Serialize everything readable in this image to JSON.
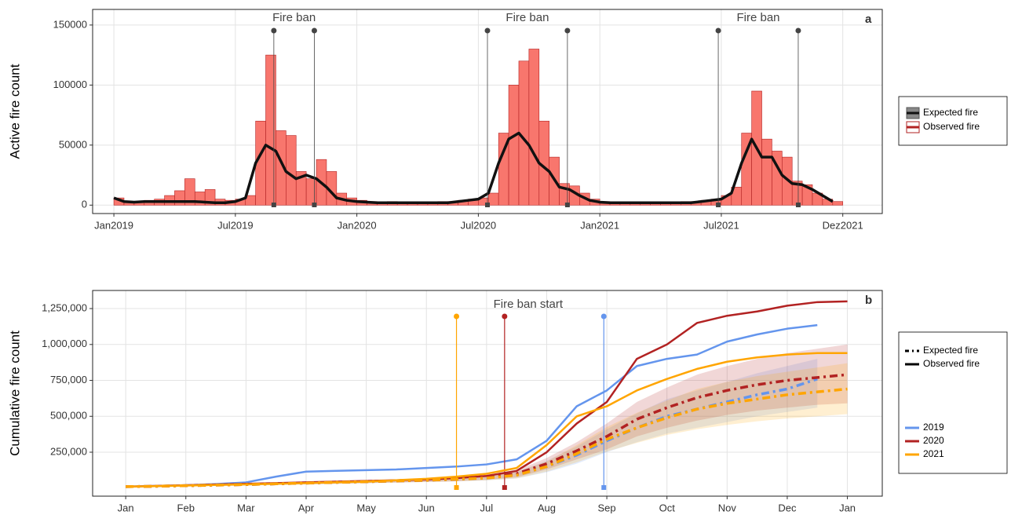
{
  "chart_data": [
    {
      "type": "bar",
      "panel": "a",
      "y_label": "Active fire count",
      "x": [
        0,
        0.5,
        1,
        1.5,
        2,
        2.5,
        3,
        3.5,
        4,
        4.5,
        5,
        5.5,
        6,
        6.5,
        7,
        7.5,
        8,
        8.5,
        9,
        9.5,
        10,
        10.5,
        11,
        11.5,
        12,
        12.5,
        13,
        13.5,
        14,
        14.5,
        15,
        15.5,
        16,
        16.5,
        17,
        17.5,
        18,
        18.5,
        19,
        19.5,
        20,
        20.5,
        21,
        21.5,
        22,
        22.5,
        23,
        23.5,
        24,
        24.5,
        25,
        25.5,
        26,
        26.5,
        27,
        27.5,
        28,
        28.5,
        29,
        29.5,
        30,
        30.5,
        31,
        31.5,
        32,
        32.5,
        33,
        33.5,
        34,
        34.5,
        35,
        35.5
      ],
      "series": [
        {
          "name": "Observed fire",
          "color": "#F8766D",
          "values": [
            6000,
            3000,
            3000,
            4000,
            5000,
            8000,
            12000,
            22000,
            11000,
            13000,
            5000,
            4000,
            5000,
            8000,
            70000,
            125000,
            62000,
            58000,
            28000,
            22000,
            38000,
            28000,
            10000,
            6000,
            4000,
            3000,
            2000,
            3000,
            2000,
            2000,
            2000,
            2000,
            3000,
            3000,
            4000,
            5000,
            6000,
            10000,
            60000,
            100000,
            120000,
            130000,
            70000,
            40000,
            18000,
            16000,
            10000,
            5000,
            3000,
            2000,
            2000,
            2000,
            2000,
            2000,
            2000,
            2000,
            3000,
            3000,
            4000,
            5000,
            8000,
            15000,
            60000,
            95000,
            55000,
            45000,
            40000,
            20000,
            17000,
            10000,
            5000,
            3000
          ]
        },
        {
          "name": "Expected fire",
          "color": "#111111",
          "values": [
            6000,
            3000,
            2500,
            3000,
            3000,
            3000,
            3000,
            3000,
            3000,
            2500,
            2000,
            2000,
            3000,
            6000,
            35000,
            50000,
            45000,
            28000,
            22000,
            25000,
            22000,
            15000,
            6000,
            4000,
            3000,
            2500,
            2000,
            2000,
            2000,
            2000,
            2000,
            2000,
            2000,
            2000,
            3000,
            4000,
            5000,
            10000,
            35000,
            55000,
            60000,
            50000,
            35000,
            28000,
            15000,
            13000,
            8000,
            4000,
            2500,
            2000,
            2000,
            2000,
            2000,
            2000,
            2000,
            2000,
            2000,
            2000,
            3000,
            4000,
            5000,
            10000,
            35000,
            55000,
            40000,
            40000,
            25000,
            18000,
            17000,
            13000,
            8000,
            3000
          ]
        }
      ],
      "bans": [
        {
          "label": "Fire ban",
          "start": 7.9,
          "end": 9.9
        },
        {
          "label": "Fire ban",
          "start": 18.45,
          "end": 22.4
        },
        {
          "label": "Fire ban",
          "start": 29.85,
          "end": 33.8
        }
      ],
      "xlim": [
        -1.05,
        37.95
      ],
      "xticks": [
        {
          "value": 0,
          "label": "Jan2019"
        },
        {
          "value": 6,
          "label": "Jul2019"
        },
        {
          "value": 12,
          "label": "Jan2020"
        },
        {
          "value": 18,
          "label": "Jul2020"
        },
        {
          "value": 24,
          "label": "Jan2021"
        },
        {
          "value": 30,
          "label": "Jul2021"
        },
        {
          "value": 36,
          "label": "Dez2021"
        }
      ],
      "ylim": [
        -7000,
        163000
      ],
      "yticks": [
        0,
        50000,
        100000,
        150000
      ],
      "grid": true
    },
    {
      "type": "line",
      "panel": "b",
      "y_label": "Cumulative fire count",
      "ban_label": "Fire ban start",
      "legend_linetypes": [
        "Expected fire",
        "Observed fire"
      ],
      "x": [
        0,
        0.5,
        1,
        1.5,
        2,
        2.5,
        3,
        3.5,
        4,
        4.5,
        5,
        5.5,
        6,
        6.5,
        7,
        7.5,
        8,
        8.5,
        9,
        9.5,
        10,
        10.5,
        11,
        11.5,
        12
      ],
      "series": [
        {
          "name": "2019",
          "color": "#6495ED",
          "ban_start": 7.95,
          "values": [
            10000,
            15000,
            20000,
            28000,
            40000,
            80000,
            115000,
            120000,
            125000,
            130000,
            140000,
            150000,
            165000,
            200000,
            330000,
            570000,
            680000,
            850000,
            900000,
            930000,
            1020000,
            1070000,
            1110000,
            1135000,
            null
          ],
          "expected": [
            10000,
            13000,
            17000,
            21000,
            25000,
            30000,
            35000,
            40000,
            45000,
            50000,
            55000,
            62000,
            70000,
            90000,
            150000,
            230000,
            330000,
            420000,
            500000,
            550000,
            600000,
            650000,
            690000,
            760000,
            null
          ],
          "lower": [
            8000,
            10000,
            13000,
            16000,
            19000,
            23000,
            27000,
            31000,
            35000,
            39000,
            43000,
            48000,
            54000,
            68000,
            110000,
            170000,
            250000,
            320000,
            380000,
            420000,
            460000,
            500000,
            530000,
            560000,
            null
          ],
          "upper": [
            12000,
            16000,
            21000,
            26000,
            31000,
            37000,
            43000,
            49000,
            55000,
            61000,
            67000,
            76000,
            86000,
            112000,
            190000,
            290000,
            410000,
            520000,
            620000,
            680000,
            740000,
            800000,
            850000,
            900000,
            null
          ]
        },
        {
          "name": "2020",
          "color": "#B22222",
          "ban_start": 6.3,
          "values": [
            10000,
            15000,
            20000,
            25000,
            30000,
            35000,
            40000,
            45000,
            50000,
            55000,
            60000,
            70000,
            85000,
            120000,
            250000,
            450000,
            600000,
            900000,
            1000000,
            1150000,
            1200000,
            1230000,
            1270000,
            1295000,
            1300000
          ],
          "expected": [
            10000,
            13000,
            17000,
            21000,
            25000,
            30000,
            35000,
            40000,
            45000,
            50000,
            55000,
            62000,
            75000,
            100000,
            170000,
            260000,
            360000,
            480000,
            560000,
            630000,
            680000,
            720000,
            750000,
            770000,
            790000
          ],
          "lower": [
            8000,
            10000,
            13000,
            16000,
            19000,
            23000,
            27000,
            31000,
            35000,
            39000,
            43000,
            48000,
            58000,
            76000,
            130000,
            200000,
            270000,
            360000,
            420000,
            470000,
            510000,
            540000,
            560000,
            580000,
            590000
          ],
          "upper": [
            12000,
            16000,
            21000,
            26000,
            31000,
            37000,
            43000,
            49000,
            55000,
            61000,
            67000,
            76000,
            92000,
            124000,
            210000,
            320000,
            450000,
            600000,
            700000,
            790000,
            850000,
            900000,
            940000,
            970000,
            1000000
          ]
        },
        {
          "name": "2021",
          "color": "#FFA500",
          "ban_start": 5.5,
          "values": [
            10000,
            14000,
            18000,
            22000,
            26000,
            30000,
            35000,
            40000,
            45000,
            55000,
            65000,
            80000,
            100000,
            140000,
            300000,
            500000,
            570000,
            680000,
            760000,
            830000,
            880000,
            910000,
            930000,
            940000,
            940000
          ],
          "expected": [
            10000,
            13000,
            17000,
            21000,
            25000,
            30000,
            35000,
            40000,
            45000,
            50000,
            55000,
            62000,
            70000,
            90000,
            150000,
            240000,
            340000,
            420000,
            490000,
            550000,
            590000,
            620000,
            650000,
            670000,
            690000
          ],
          "lower": [
            8000,
            10000,
            13000,
            16000,
            19000,
            23000,
            27000,
            31000,
            35000,
            39000,
            43000,
            48000,
            54000,
            68000,
            115000,
            180000,
            255000,
            315000,
            370000,
            410000,
            440000,
            465000,
            485000,
            500000,
            515000
          ],
          "upper": [
            12000,
            16000,
            21000,
            26000,
            31000,
            37000,
            43000,
            49000,
            55000,
            61000,
            67000,
            76000,
            86000,
            112000,
            185000,
            300000,
            425000,
            525000,
            610000,
            690000,
            740000,
            780000,
            810000,
            840000,
            870000
          ]
        }
      ],
      "xlim": [
        -0.55,
        12.58
      ],
      "xticks": [
        {
          "value": 0,
          "label": "Jan"
        },
        {
          "value": 1,
          "label": "Feb"
        },
        {
          "value": 2,
          "label": "Mar"
        },
        {
          "value": 3,
          "label": "Apr"
        },
        {
          "value": 4,
          "label": "May"
        },
        {
          "value": 5,
          "label": "Jun"
        },
        {
          "value": 6,
          "label": "Jul"
        },
        {
          "value": 7,
          "label": "Aug"
        },
        {
          "value": 8,
          "label": "Sep"
        },
        {
          "value": 9,
          "label": "Oct"
        },
        {
          "value": 10,
          "label": "Nov"
        },
        {
          "value": 11,
          "label": "Dec"
        },
        {
          "value": 12,
          "label": "Jan"
        }
      ],
      "ylim": [
        -56000,
        1376000
      ],
      "yticks": [
        {
          "value": 250000,
          "label": "250,000"
        },
        {
          "value": 500000,
          "label": "500,000"
        },
        {
          "value": 750000,
          "label": "750,000"
        },
        {
          "value": 1000000,
          "label": "1,000,000"
        },
        {
          "value": 1250000,
          "label": "1,250,000"
        }
      ],
      "grid": true
    }
  ]
}
